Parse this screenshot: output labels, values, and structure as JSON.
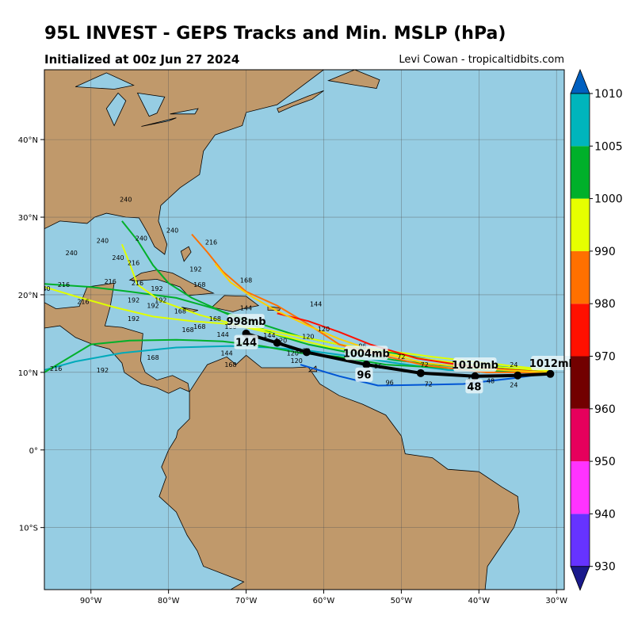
{
  "header": {
    "title": "95L INVEST - GEPS Tracks and Min. MSLP (hPa)",
    "subtitle": "Initialized at 00z Jun 27 2024",
    "credit": "Levi Cowan - tropicaltidbits.com"
  },
  "map": {
    "lon_range": [
      -96,
      -29
    ],
    "lat_range": [
      -18,
      49
    ],
    "lon_ticks": [
      "90°W",
      "80°W",
      "70°W",
      "60°W",
      "50°W",
      "40°W",
      "30°W"
    ],
    "lat_ticks": [
      "10°S",
      "0°",
      "10°N",
      "20°N",
      "30°N",
      "40°N"
    ],
    "ocean_color": "#96cde3",
    "land_color": "#c0996b",
    "grid": true
  },
  "mean_track": {
    "points": [
      {
        "lon": -30.8,
        "lat": 9.8
      },
      {
        "lon": -35.0,
        "lat": 9.6
      },
      {
        "lon": -40.5,
        "lat": 9.5
      },
      {
        "lon": -47.5,
        "lat": 9.9
      },
      {
        "lon": -54.5,
        "lat": 11.0
      },
      {
        "lon": -62.2,
        "lat": 12.6
      },
      {
        "lon": -66.0,
        "lat": 13.8
      },
      {
        "lon": -70.0,
        "lat": 15.0
      }
    ],
    "pressure_labels": [
      {
        "text": "1012mb",
        "lon": -30.5,
        "lat": 10.9
      },
      {
        "text": "1010mb",
        "lon": -40.5,
        "lat": 10.7
      },
      {
        "text": "1004mb",
        "lon": -54.5,
        "lat": 12.2
      },
      {
        "text": "998mb",
        "lon": -70.0,
        "lat": 16.3
      }
    ],
    "hour_labels": [
      {
        "text": "48",
        "lon": -40.6,
        "lat": 7.9
      },
      {
        "text": "96",
        "lon": -54.8,
        "lat": 9.4
      },
      {
        "text": "144",
        "lon": -70.0,
        "lat": 13.6
      }
    ]
  },
  "members": [
    {
      "color": "#0055d4",
      "points": [
        [
          -30.8,
          9.9
        ],
        [
          -36,
          9.2
        ],
        [
          -42,
          8.5
        ],
        [
          -47,
          8.4
        ],
        [
          -53,
          8.3
        ],
        [
          -58,
          9.5
        ],
        [
          -63,
          11.0
        ]
      ]
    },
    {
      "color": "#00aaba",
      "points": [
        [
          -31,
          10.1
        ],
        [
          -37,
          10.1
        ],
        [
          -44,
          10.3
        ],
        [
          -50,
          11.1
        ],
        [
          -56,
          12.0
        ],
        [
          -62,
          12.8
        ],
        [
          -67,
          13.2
        ],
        [
          -72,
          13.4
        ],
        [
          -79,
          13.2
        ],
        [
          -86,
          12.5
        ],
        [
          -92,
          11.4
        ],
        [
          -96,
          10.3
        ]
      ]
    },
    {
      "color": "#00b02a",
      "points": [
        [
          -31,
          10.1
        ],
        [
          -38,
          10.5
        ],
        [
          -45,
          10.9
        ],
        [
          -51,
          11.6
        ],
        [
          -57,
          12.6
        ],
        [
          -62,
          13.6
        ],
        [
          -66,
          14.8
        ],
        [
          -70,
          16.5
        ],
        [
          -74,
          18.2
        ],
        [
          -79,
          19.6
        ],
        [
          -85,
          20.4
        ],
        [
          -90,
          21.0
        ],
        [
          -96,
          21.4
        ]
      ]
    },
    {
      "color": "#00b02a",
      "points": [
        [
          -31,
          10.0
        ],
        [
          -37,
          10.7
        ],
        [
          -44,
          11.2
        ],
        [
          -51,
          12.5
        ],
        [
          -57,
          13.4
        ],
        [
          -63,
          14.6
        ],
        [
          -68,
          16.2
        ],
        [
          -73,
          17.8
        ],
        [
          -77,
          19.6
        ],
        [
          -80,
          21.5
        ],
        [
          -82,
          23.8
        ],
        [
          -84,
          27.0
        ],
        [
          -86,
          29.5
        ]
      ]
    },
    {
      "color": "#00b02a",
      "points": [
        [
          -31,
          10.2
        ],
        [
          -38,
          10.2
        ],
        [
          -45,
          10.6
        ],
        [
          -52,
          11.0
        ],
        [
          -58,
          12.0
        ],
        [
          -63,
          12.5
        ],
        [
          -68,
          13.4
        ],
        [
          -73,
          14.0
        ],
        [
          -79,
          14.2
        ],
        [
          -85,
          14.1
        ],
        [
          -90,
          13.6
        ],
        [
          -96,
          10.0
        ]
      ]
    },
    {
      "color": "#e0ff00",
      "points": [
        [
          -31,
          10.3
        ],
        [
          -39,
          11.2
        ],
        [
          -46,
          12.0
        ],
        [
          -52,
          12.8
        ],
        [
          -58,
          13.6
        ],
        [
          -63,
          14.6
        ],
        [
          -67,
          15.4
        ],
        [
          -72,
          16.2
        ],
        [
          -77,
          16.6
        ],
        [
          -82,
          17.2
        ],
        [
          -87,
          18.4
        ],
        [
          -92,
          19.8
        ],
        [
          -96,
          21.0
        ]
      ]
    },
    {
      "color": "#e0ff00",
      "points": [
        [
          -31,
          10.2
        ],
        [
          -39,
          10.8
        ],
        [
          -46,
          11.6
        ],
        [
          -53,
          12.5
        ],
        [
          -59,
          13.2
        ],
        [
          -64,
          14.4
        ],
        [
          -70,
          15.8
        ],
        [
          -76,
          17.4
        ],
        [
          -81,
          19.2
        ],
        [
          -84,
          21.3
        ],
        [
          -85,
          24.0
        ],
        [
          -86,
          26.5
        ]
      ]
    },
    {
      "color": "#ff7000",
      "points": [
        [
          -31,
          10.0
        ],
        [
          -39,
          10.0
        ],
        [
          -47,
          10.9
        ],
        [
          -53,
          12.3
        ],
        [
          -58,
          13.6
        ],
        [
          -62,
          16.2
        ],
        [
          -66,
          18.6
        ],
        [
          -70,
          20.4
        ],
        [
          -73,
          23.0
        ],
        [
          -75,
          25.5
        ],
        [
          -77,
          27.8
        ]
      ]
    },
    {
      "color": "#ff1000",
      "points": [
        [
          -31,
          10.0
        ],
        [
          -40,
          10.6
        ],
        [
          -48,
          11.8
        ],
        [
          -54,
          13.6
        ],
        [
          -58,
          15.2
        ],
        [
          -62,
          16.6
        ],
        [
          -66,
          17.6
        ]
      ]
    },
    {
      "color": "#ffd000",
      "points": [
        [
          -31,
          10.0
        ],
        [
          -39,
          10.4
        ],
        [
          -47,
          11.2
        ],
        [
          -53,
          12.6
        ],
        [
          -58,
          14.3
        ],
        [
          -62,
          16.0
        ],
        [
          -66,
          17.9
        ],
        [
          -69,
          19.6
        ],
        [
          -72,
          21.6
        ],
        [
          -74,
          24.0
        ]
      ]
    }
  ],
  "hour_marks": [
    {
      "text": "240",
      "lon": -85.5,
      "lat": 32.0
    },
    {
      "text": "240",
      "lon": -79.5,
      "lat": 28.0
    },
    {
      "text": "216",
      "lon": -74.5,
      "lat": 26.5
    },
    {
      "text": "240",
      "lon": -88.5,
      "lat": 26.7
    },
    {
      "text": "240",
      "lon": -83.5,
      "lat": 27.0
    },
    {
      "text": "240",
      "lon": -86.5,
      "lat": 24.5
    },
    {
      "text": "240",
      "lon": -92.5,
      "lat": 25.1
    },
    {
      "text": "216",
      "lon": -84.5,
      "lat": 23.8
    },
    {
      "text": "192",
      "lon": -76.5,
      "lat": 23.0
    },
    {
      "text": "168",
      "lon": -70.0,
      "lat": 21.6
    },
    {
      "text": "216",
      "lon": -87.5,
      "lat": 21.4
    },
    {
      "text": "216",
      "lon": -84.0,
      "lat": 21.2
    },
    {
      "text": "216",
      "lon": -93.5,
      "lat": 21.0
    },
    {
      "text": "240",
      "lon": -96.0,
      "lat": 20.5
    },
    {
      "text": "192",
      "lon": -81.5,
      "lat": 20.5
    },
    {
      "text": "168",
      "lon": -76.0,
      "lat": 21.0
    },
    {
      "text": "192",
      "lon": -84.5,
      "lat": 19.0
    },
    {
      "text": "192",
      "lon": -81.0,
      "lat": 19.0
    },
    {
      "text": "192",
      "lon": -82.0,
      "lat": 18.3
    },
    {
      "text": "216",
      "lon": -91.0,
      "lat": 18.8
    },
    {
      "text": "144",
      "lon": -70.0,
      "lat": 18.0
    },
    {
      "text": "144",
      "lon": -61.0,
      "lat": 18.5
    },
    {
      "text": "192",
      "lon": -84.5,
      "lat": 16.6
    },
    {
      "text": "168",
      "lon": -78.5,
      "lat": 17.6
    },
    {
      "text": "168",
      "lon": -74.0,
      "lat": 16.6
    },
    {
      "text": "168",
      "lon": -72.0,
      "lat": 15.6
    },
    {
      "text": "168",
      "lon": -76.0,
      "lat": 15.6
    },
    {
      "text": "168",
      "lon": -77.5,
      "lat": 15.2
    },
    {
      "text": "144",
      "lon": -73.0,
      "lat": 14.6
    },
    {
      "text": "120",
      "lon": -60.0,
      "lat": 15.3
    },
    {
      "text": "120",
      "lon": -62.0,
      "lat": 14.3
    },
    {
      "text": "144",
      "lon": -67.0,
      "lat": 14.5
    },
    {
      "text": "120",
      "lon": -65.5,
      "lat": 13.8
    },
    {
      "text": "120",
      "lon": -62.5,
      "lat": 12.5
    },
    {
      "text": "120",
      "lon": -64.0,
      "lat": 12.2
    },
    {
      "text": "120",
      "lon": -63.5,
      "lat": 11.2
    },
    {
      "text": "96",
      "lon": -55.0,
      "lat": 13.1
    },
    {
      "text": "72",
      "lon": -50.0,
      "lat": 11.7
    },
    {
      "text": "72",
      "lon": -47.0,
      "lat": 10.7
    },
    {
      "text": "96",
      "lon": -53.0,
      "lat": 10.5
    },
    {
      "text": "96",
      "lon": -51.5,
      "lat": 8.4
    },
    {
      "text": "72",
      "lon": -46.5,
      "lat": 8.2
    },
    {
      "text": "168",
      "lon": -82.0,
      "lat": 11.6
    },
    {
      "text": "192",
      "lon": -88.5,
      "lat": 10.0
    },
    {
      "text": "216",
      "lon": -94.5,
      "lat": 10.2
    },
    {
      "text": "168",
      "lon": -72.0,
      "lat": 10.7
    },
    {
      "text": "144",
      "lon": -72.5,
      "lat": 12.2
    },
    {
      "text": "24",
      "lon": -35.5,
      "lat": 10.7
    },
    {
      "text": "24",
      "lon": -35.5,
      "lat": 8.1
    },
    {
      "text": "48",
      "lon": -41.0,
      "lat": 8.8
    },
    {
      "text": "48",
      "lon": -38.5,
      "lat": 8.6
    }
  ],
  "colorbar": {
    "ticks": [
      "930",
      "940",
      "950",
      "960",
      "970",
      "980",
      "990",
      "1000",
      "1005",
      "1010"
    ],
    "colors": [
      "#6633ff",
      "#ff33ff",
      "#e6005c",
      "#720000",
      "#ff1000",
      "#ff7000",
      "#e6ff00",
      "#00b02a",
      "#00b5bc"
    ],
    "low_extend_color": "#1a1a8c",
    "high_extend_color": "#0060c0"
  }
}
